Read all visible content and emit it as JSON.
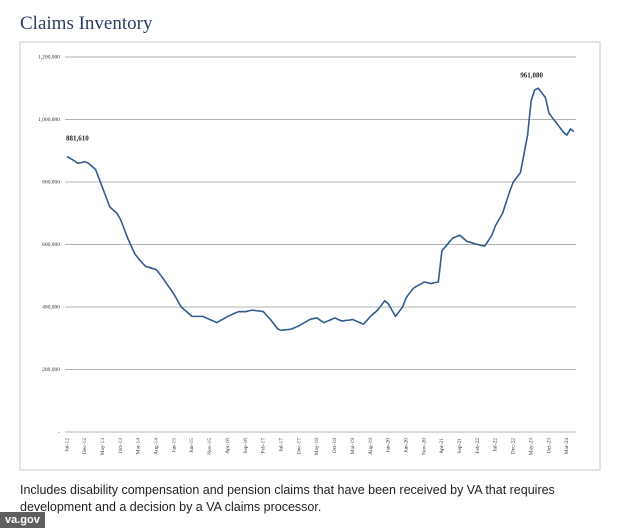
{
  "chart_data": {
    "type": "line",
    "title": "Claims Inventory",
    "caption": "Includes disability compensation and pension claims that have been received by VA that requires development and a decision by a VA claims processor.",
    "annotations": [
      "881,610",
      "961,080"
    ],
    "color": "#2f5b8f",
    "grid": true,
    "ylim": [
      0,
      1200000
    ],
    "yticks": [
      {
        "value": 0,
        "label": "-"
      },
      {
        "value": 200000,
        "label": "200,000"
      },
      {
        "value": 400000,
        "label": "400,000"
      },
      {
        "value": 600000,
        "label": "600,000"
      },
      {
        "value": 800000,
        "label": "800,000"
      },
      {
        "value": 1000000,
        "label": "1,000,000"
      },
      {
        "value": 1200000,
        "label": "1,200,000"
      }
    ],
    "categories": [
      "Jul-12",
      null,
      null,
      null,
      null,
      "Dec-12",
      null,
      null,
      null,
      null,
      "May-13",
      null,
      null,
      null,
      null,
      "Oct-13",
      null,
      null,
      null,
      null,
      "Mar-14",
      null,
      null,
      null,
      null,
      "Aug-14",
      null,
      null,
      null,
      null,
      "Jan-15",
      null,
      null,
      null,
      null,
      "Jun-15",
      null,
      null,
      null,
      null,
      "Nov-15",
      null,
      null,
      null,
      null,
      "Apr-16",
      null,
      null,
      null,
      null,
      "Sep-16",
      null,
      null,
      null,
      null,
      "Feb-17",
      null,
      null,
      null,
      null,
      "Jul-17",
      null,
      null,
      null,
      null,
      "Dec-17",
      null,
      null,
      null,
      null,
      "May-18",
      null,
      null,
      null,
      null,
      "Oct-18",
      null,
      null,
      null,
      null,
      "Mar-19",
      null,
      null,
      null,
      null,
      "Aug-19",
      null,
      null,
      null,
      null,
      "Jan-20",
      null,
      null,
      null,
      null,
      "Jun-20",
      null,
      null,
      null,
      null,
      "Nov-20",
      null,
      null,
      null,
      null,
      "Apr-21",
      null,
      null,
      null,
      null,
      "Sep-21",
      null,
      null,
      null,
      null,
      "Feb-22",
      null,
      null,
      null,
      null,
      "Jul-22",
      null,
      null,
      null,
      null,
      "Dec-22",
      null,
      null,
      null,
      null,
      "May-23",
      null,
      null,
      null,
      null,
      "Oct-23",
      null,
      null,
      null,
      null,
      "Mar-24",
      null,
      null
    ],
    "values": [
      881610,
      875000,
      868000,
      860000,
      862000,
      865000,
      860000,
      850000,
      840000,
      810000,
      780000,
      750000,
      720000,
      710000,
      700000,
      680000,
      650000,
      620000,
      595000,
      570000,
      555000,
      542000,
      530000,
      527000,
      523000,
      520000,
      505000,
      490000,
      473000,
      457000,
      440000,
      420000,
      400000,
      390000,
      380000,
      370000,
      370000,
      370000,
      370000,
      365000,
      360000,
      355000,
      350000,
      357000,
      363000,
      370000,
      375000,
      380000,
      385000,
      385000,
      385000,
      388000,
      390000,
      388000,
      387000,
      385000,
      372000,
      360000,
      345000,
      330000,
      325000,
      327000,
      328000,
      330000,
      335000,
      340000,
      347000,
      353000,
      360000,
      363000,
      365000,
      357000,
      350000,
      355000,
      360000,
      365000,
      360000,
      355000,
      357000,
      358000,
      360000,
      355000,
      350000,
      345000,
      357000,
      370000,
      380000,
      390000,
      405000,
      420000,
      410000,
      390000,
      370000,
      385000,
      400000,
      430000,
      445000,
      460000,
      467000,
      473000,
      480000,
      478000,
      475000,
      478000,
      480000,
      580000,
      593000,
      607000,
      620000,
      625000,
      630000,
      620000,
      610000,
      607000,
      603000,
      600000,
      597000,
      595000,
      612000,
      630000,
      660000,
      680000,
      700000,
      735000,
      770000,
      800000,
      815000,
      830000,
      890000,
      950000,
      1060000,
      1095000,
      1100000,
      1085000,
      1070000,
      1020000,
      1005000,
      990000,
      975000,
      960000,
      950000,
      970000,
      961080
    ]
  },
  "credit": "va.gov"
}
